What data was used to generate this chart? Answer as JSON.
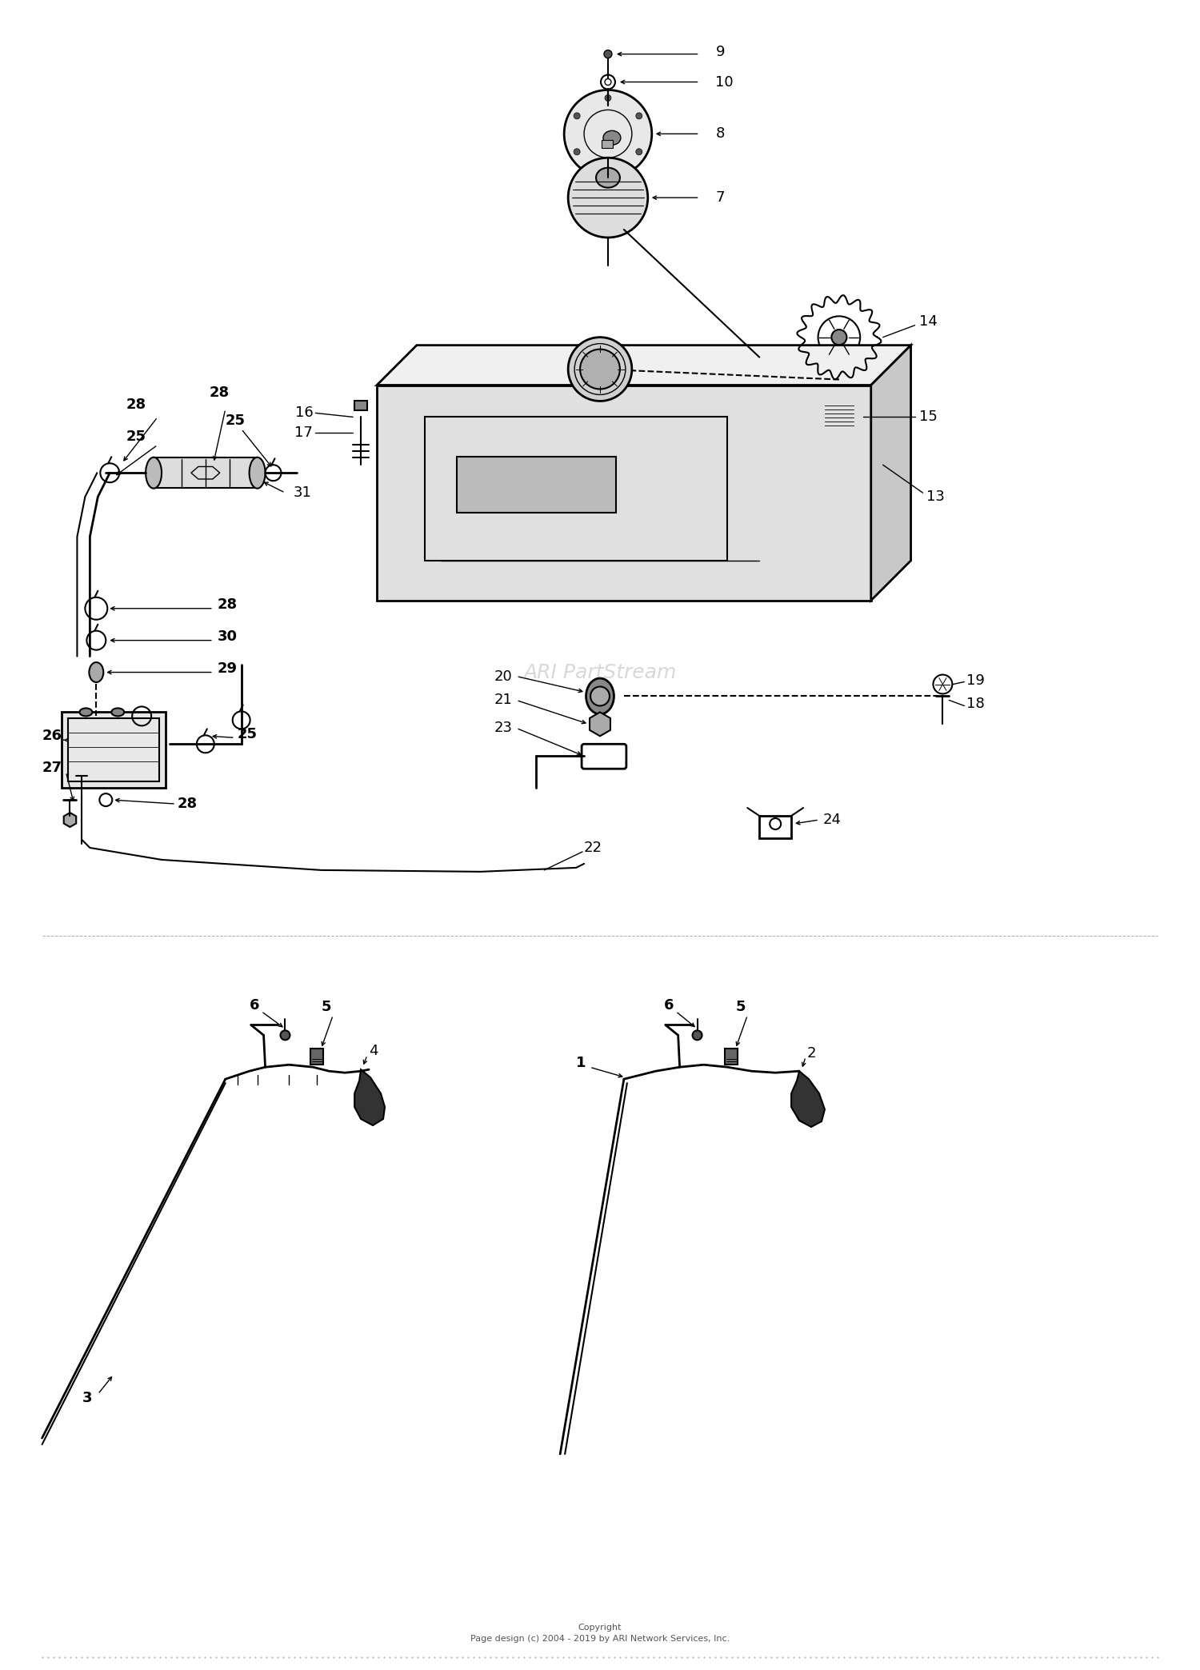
{
  "background_color": "#ffffff",
  "line_color": "#000000",
  "watermark": "ARI PartStream",
  "copyright": "Copyright\nPage design (c) 2004 - 2019 by ARI Network Services, Inc.",
  "fig_width": 15.0,
  "fig_height": 20.88,
  "dpi": 100
}
